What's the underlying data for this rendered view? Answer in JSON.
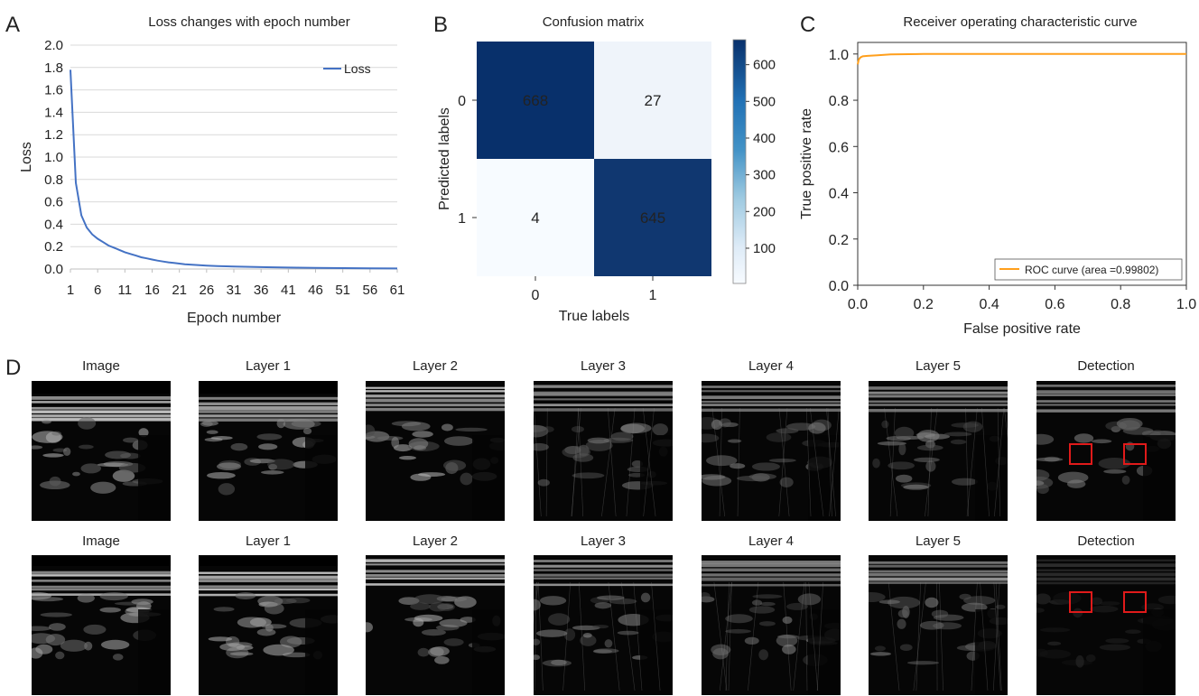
{
  "panels": {
    "a": {
      "letter": "A"
    },
    "b": {
      "letter": "B"
    },
    "c": {
      "letter": "C"
    },
    "d": {
      "letter": "D"
    }
  },
  "chart_data": [
    {
      "id": "loss",
      "type": "line",
      "title": "Loss changes with epoch number",
      "xlabel": "Epoch number",
      "ylabel": "Loss",
      "xlim": [
        1,
        61
      ],
      "ylim": [
        0,
        2.0
      ],
      "x_ticks": [
        1,
        6,
        11,
        16,
        21,
        26,
        31,
        36,
        41,
        46,
        51,
        56,
        61
      ],
      "y_ticks": [
        "0.0",
        "0.2",
        "0.4",
        "0.6",
        "0.8",
        "1.0",
        "1.2",
        "1.4",
        "1.6",
        "1.8",
        "2.0"
      ],
      "grid": true,
      "legend_position": "top-right",
      "series": [
        {
          "name": "Loss",
          "color": "#4472c4",
          "x": [
            1,
            2,
            3,
            4,
            5,
            6,
            7,
            8,
            9,
            10,
            11,
            12,
            13,
            14,
            15,
            16,
            17,
            18,
            19,
            20,
            21,
            22,
            24,
            26,
            28,
            31,
            34,
            37,
            41,
            46,
            51,
            56,
            61
          ],
          "y": [
            1.78,
            0.77,
            0.48,
            0.37,
            0.31,
            0.27,
            0.24,
            0.21,
            0.19,
            0.17,
            0.15,
            0.135,
            0.12,
            0.105,
            0.095,
            0.085,
            0.075,
            0.067,
            0.06,
            0.054,
            0.048,
            0.043,
            0.036,
            0.031,
            0.027,
            0.022,
            0.019,
            0.016,
            0.013,
            0.01,
            0.008,
            0.006,
            0.005
          ]
        }
      ]
    },
    {
      "id": "confusion",
      "type": "heatmap",
      "title": "Confusion matrix",
      "xlabel": "True labels",
      "ylabel": "Predicted labels",
      "x_categories": [
        "0",
        "1"
      ],
      "y_categories": [
        "0",
        "1"
      ],
      "values": [
        [
          668,
          27
        ],
        [
          4,
          645
        ]
      ],
      "colorbar_ticks": [
        100,
        200,
        300,
        400,
        500,
        600
      ],
      "colorbar_range": [
        4,
        668
      ],
      "colormap": [
        "#f7fbff",
        "#08306b"
      ]
    },
    {
      "id": "roc",
      "type": "line",
      "title": "Receiver operating characteristic curve",
      "xlabel": "False positive rate",
      "ylabel": "True positive rate",
      "xlim": [
        0,
        1.0
      ],
      "ylim": [
        0,
        1.05
      ],
      "x_ticks": [
        "0.0",
        "0.2",
        "0.4",
        "0.6",
        "0.8",
        "1.0"
      ],
      "y_ticks": [
        "0.0",
        "0.2",
        "0.4",
        "0.6",
        "0.8",
        "1.0"
      ],
      "legend_position": "bottom-right",
      "series": [
        {
          "name": "ROC curve (area =0.99802)",
          "color": "#ff9f1c",
          "x": [
            0.0,
            0.003,
            0.008,
            0.015,
            0.03,
            0.06,
            0.1,
            0.2,
            0.3,
            0.5,
            0.7,
            1.0
          ],
          "y": [
            0.955,
            0.975,
            0.985,
            0.99,
            0.992,
            0.994,
            0.998,
            1.0,
            1.0,
            1.0,
            1.0,
            1.0
          ]
        }
      ]
    }
  ],
  "feature_maps": {
    "rows": [
      {
        "labels": [
          "Image",
          "Layer 1",
          "Layer 2",
          "Layer 3",
          "Layer 4",
          "Layer 5",
          "Detection"
        ]
      },
      {
        "labels": [
          "Image",
          "Layer 1",
          "Layer 2",
          "Layer 3",
          "Layer 4",
          "Layer 5",
          "Detection"
        ]
      }
    ],
    "detection_box_color": "#e01a1a"
  }
}
